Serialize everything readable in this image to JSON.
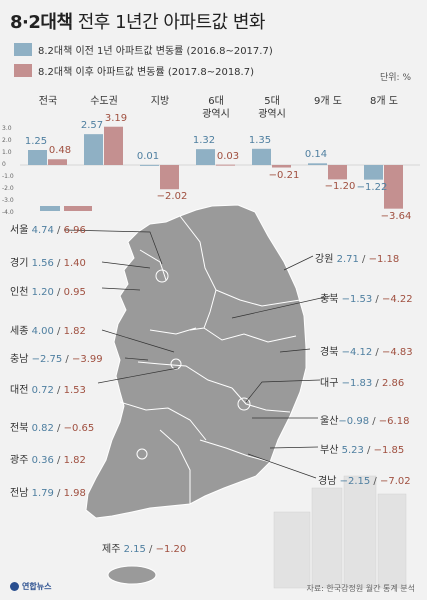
{
  "title": {
    "bold": "8·2대책",
    "rest": " 전후 1년간 아파트값 변화"
  },
  "legend": [
    {
      "label": "8.2대책 이전 1년 아파트값 변동률 (2016.8~2017.7)",
      "color": "#8fb0c4"
    },
    {
      "label": "8.2대책 이후 아파트값 변동률 (2017.8~2018.7)",
      "color": "#c49090"
    }
  ],
  "unit": "단위: %",
  "chart_data": {
    "type": "bar",
    "categories": [
      "전국",
      "수도권",
      "지방",
      "6대 광역시",
      "5대 광역시",
      "9개 도",
      "8개 도"
    ],
    "category_lines": [
      [
        "전국"
      ],
      [
        "수도권"
      ],
      [
        "지방"
      ],
      [
        "6대",
        "광역시"
      ],
      [
        "5대",
        "광역시"
      ],
      [
        "9개 도"
      ],
      [
        "8개 도"
      ]
    ],
    "series": [
      {
        "name": "8.2대책 이전 1년 아파트값 변동률 (2016.8~2017.7)",
        "values": [
          1.25,
          2.57,
          0.01,
          1.32,
          1.35,
          0.14,
          -1.22
        ]
      },
      {
        "name": "8.2대책 이후 아파트값 변동률 (2017.8~2018.7)",
        "values": [
          0.48,
          3.19,
          -2.02,
          0.03,
          -0.21,
          -1.2,
          -3.64
        ]
      }
    ],
    "value_labels": [
      [
        "1.25",
        "0.48"
      ],
      [
        "2.57",
        "3.19"
      ],
      [
        "0.01",
        "−2.02"
      ],
      [
        "1.32",
        "0.03"
      ],
      [
        "1.35",
        "−0.21"
      ],
      [
        "0.14",
        "−1.20"
      ],
      [
        "−1.22",
        "−3.64"
      ]
    ],
    "yticks": [
      "3.0",
      "2.0",
      "1.0",
      "0",
      "-1.0",
      "-2.0",
      "-3.0",
      "-4.0"
    ],
    "ytick_values": [
      3,
      2,
      1,
      0,
      -1,
      -2,
      -3,
      -4
    ],
    "ylim": [
      -4,
      3
    ]
  },
  "regions": [
    {
      "name": "서울",
      "before": "4.74",
      "after": "6.96"
    },
    {
      "name": "경기",
      "before": "1.56",
      "after": "1.40"
    },
    {
      "name": "인천",
      "before": "1.20",
      "after": "0.95"
    },
    {
      "name": "세종",
      "before": "4.00",
      "after": "1.82"
    },
    {
      "name": "충남",
      "before": "−2.75",
      "after": "−3.99"
    },
    {
      "name": "대전",
      "before": "0.72",
      "after": "1.53"
    },
    {
      "name": "전북",
      "before": "0.82",
      "after": "−0.65"
    },
    {
      "name": "광주",
      "before": "0.36",
      "after": "1.82"
    },
    {
      "name": "전남",
      "before": "1.79",
      "after": "1.98"
    },
    {
      "name": "제주",
      "before": "2.15",
      "after": "−1.20"
    },
    {
      "name": "강원",
      "before": "2.71",
      "after": "−1.18"
    },
    {
      "name": "충북",
      "before": "−1.53",
      "after": "−4.22"
    },
    {
      "name": "경북",
      "before": "−4.12",
      "after": "−4.83"
    },
    {
      "name": "대구",
      "before": "−1.83",
      "after": "2.86"
    },
    {
      "name": "울산",
      "before": "−0.98",
      "after": "−6.18"
    },
    {
      "name": "부산",
      "before": "5.23",
      "after": "−1.85"
    },
    {
      "name": "경남",
      "before": "−2.15",
      "after": "−7.02"
    }
  ],
  "source": "자료: 한국감정원 월간 통계 분석",
  "logo": "연합뉴스"
}
